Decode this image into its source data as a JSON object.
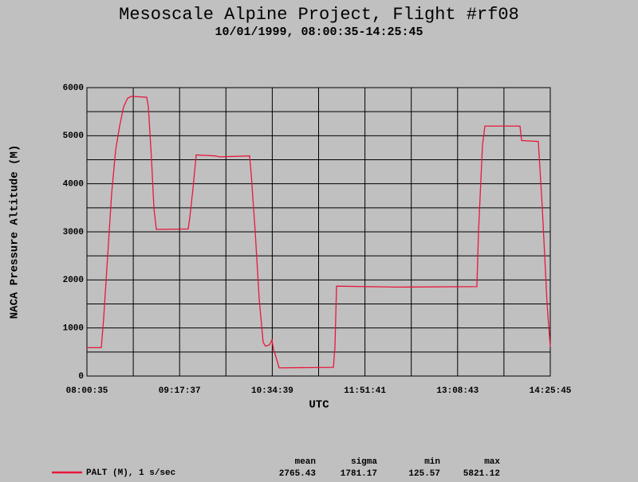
{
  "chart_data": {
    "type": "line",
    "title": "Mesoscale Alpine Project, Flight #rf08",
    "subtitle": "10/01/1999, 08:00:35-14:25:45",
    "xlabel": "UTC",
    "ylabel": "NACA Pressure Altitude (M)",
    "xlim": [
      "08:00:35",
      "14:25:45"
    ],
    "xticks": [
      "08:00:35",
      "09:17:37",
      "10:34:39",
      "11:51:41",
      "13:08:43",
      "14:25:45"
    ],
    "ylim": [
      0,
      6000
    ],
    "yticks": [
      0,
      1000,
      2000,
      3000,
      4000,
      5000,
      6000
    ],
    "grid": true,
    "x": [
      "08:00:35",
      "08:12:31",
      "08:14:30",
      "08:17:49",
      "08:21:08",
      "08:24:27",
      "08:27:46",
      "08:31:05",
      "08:34:24",
      "08:37:42",
      "08:50:18",
      "08:51:38",
      "08:54:17",
      "08:56:16",
      "08:58:16",
      "09:24:47",
      "09:26:06",
      "09:28:45",
      "09:31:24",
      "09:47:19",
      "09:50:38",
      "10:15:49",
      "10:17:09",
      "10:20:28",
      "10:23:47",
      "10:27:05",
      "10:29:05",
      "10:32:24",
      "10:34:23",
      "10:35:43",
      "10:37:42",
      "10:40:21",
      "11:25:26",
      "11:26:45",
      "11:28:05",
      "12:19:47",
      "13:24:45",
      "13:26:05",
      "13:29:24",
      "13:31:23",
      "14:00:33",
      "14:01:53",
      "14:15:48",
      "14:19:07",
      "14:23:06",
      "14:25:45"
    ],
    "series": [
      {
        "name": "PALT (M), 1 s/sec",
        "color": "#e8183c",
        "values": [
          590,
          590,
          1200,
          2500,
          3800,
          4700,
          5200,
          5600,
          5780,
          5820,
          5800,
          5600,
          4500,
          3500,
          3050,
          3060,
          3300,
          3900,
          4600,
          4580,
          4560,
          4580,
          4200,
          3000,
          1600,
          700,
          620,
          650,
          750,
          550,
          400,
          170,
          180,
          600,
          1870,
          1850,
          1860,
          3000,
          4800,
          5200,
          5200,
          4900,
          4880,
          3500,
          1500,
          600
        ]
      }
    ],
    "stats": {
      "headers": [
        "mean",
        "sigma",
        "min",
        "max"
      ],
      "values": [
        2765.43,
        1781.17,
        125.57,
        5821.12
      ]
    }
  }
}
